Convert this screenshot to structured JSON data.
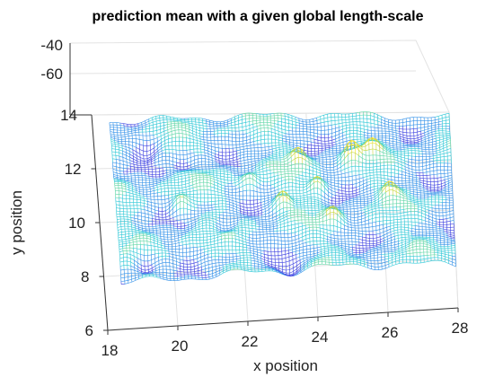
{
  "chart_data": {
    "type": "surface-mesh",
    "title": "prediction mean with a given global length-scale",
    "xlabel": "x position",
    "ylabel": "y position",
    "zlabel": "",
    "xlim": [
      18,
      28
    ],
    "ylim": [
      6,
      14
    ],
    "zlim": [
      -60,
      -40
    ],
    "x_ticks": [
      "18",
      "20",
      "22",
      "24",
      "26",
      "28"
    ],
    "y_ticks": [
      "6",
      "8",
      "10",
      "12",
      "14"
    ],
    "z_ticks": [
      "-40",
      "-60"
    ],
    "grid": true,
    "colormap": [
      "#3a3fe0",
      "#2f8fe8",
      "#2cc7d6",
      "#5fd6a6",
      "#c8d63b",
      "#f5e21c"
    ],
    "mesh_x_range": [
      18.5,
      28
    ],
    "mesh_y_range": [
      8,
      14
    ],
    "baseline_value": -63,
    "peaks": [
      {
        "x": 23.2,
        "y": 10.6,
        "value": -52
      },
      {
        "x": 24.2,
        "y": 11.2,
        "value": -53
      },
      {
        "x": 25.2,
        "y": 12.3,
        "value": -51
      },
      {
        "x": 23.7,
        "y": 12.2,
        "value": -54
      },
      {
        "x": 20.3,
        "y": 10.7,
        "value": -56
      },
      {
        "x": 26.2,
        "y": 10.8,
        "value": -55
      },
      {
        "x": 24.6,
        "y": 9.9,
        "value": -56
      },
      {
        "x": 25.8,
        "y": 12.5,
        "value": -56
      },
      {
        "x": 22.3,
        "y": 11.5,
        "value": -57
      }
    ],
    "troughs": [
      {
        "x": 19.5,
        "y": 13.0,
        "value": -70
      },
      {
        "x": 19.2,
        "y": 8.6,
        "value": -69
      },
      {
        "x": 21.5,
        "y": 9.8,
        "value": -68
      },
      {
        "x": 20.5,
        "y": 12.3,
        "value": -68
      },
      {
        "x": 23.3,
        "y": 8.4,
        "value": -69
      }
    ]
  }
}
